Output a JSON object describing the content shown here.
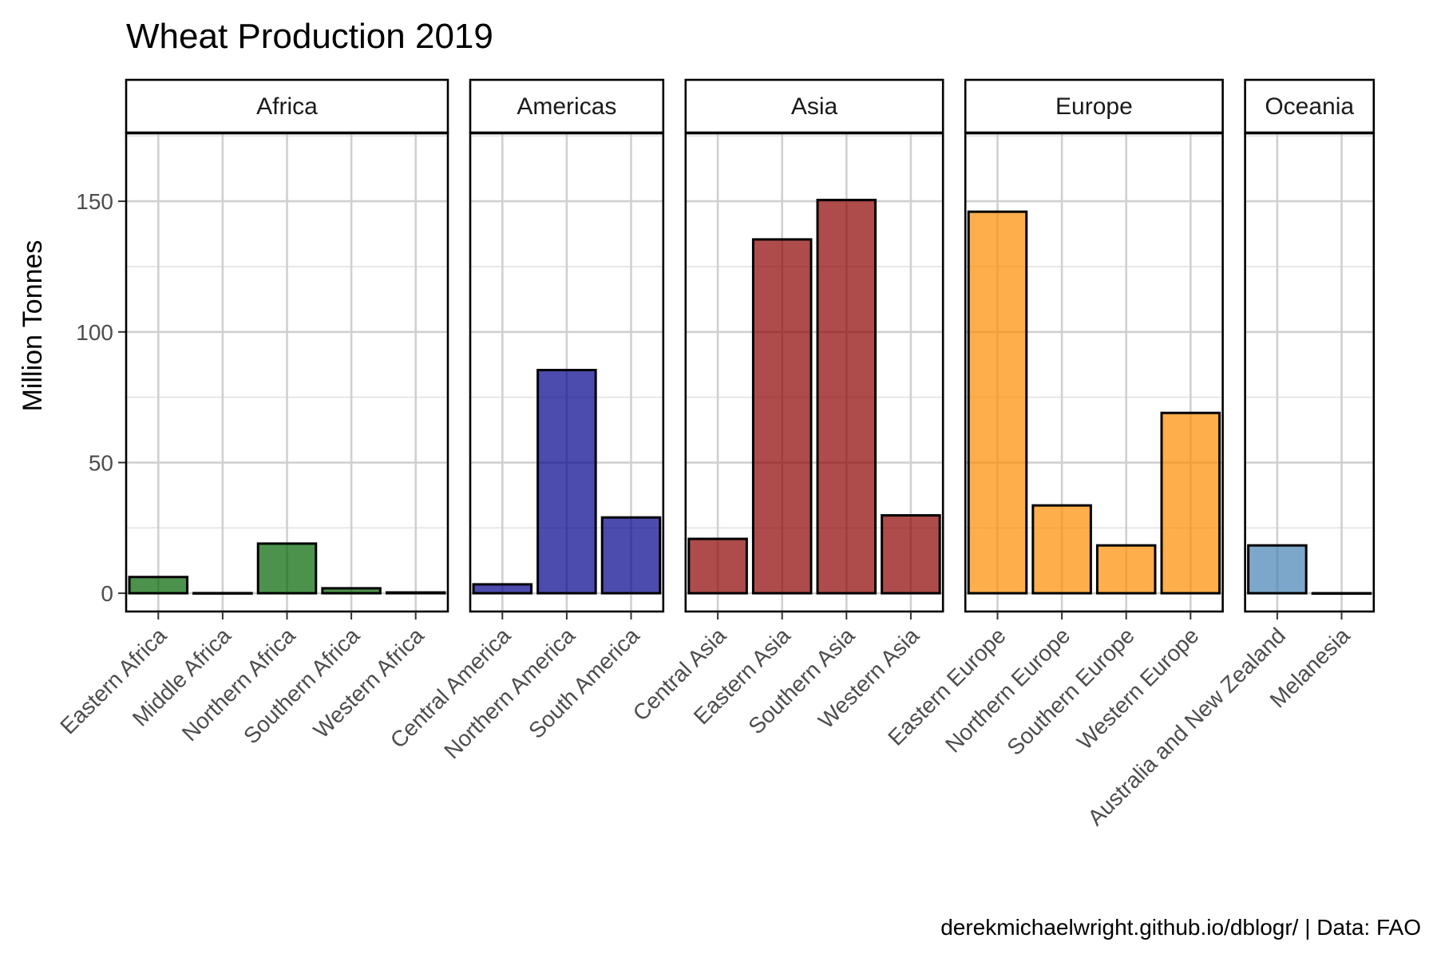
{
  "chart_data": {
    "type": "bar",
    "title": "Wheat Production 2019",
    "ylabel": "Million Tonnes",
    "xlabel": "",
    "caption": "derekmichaelwright.github.io/dblogr/ | Data: FAO",
    "ylim": [
      -7,
      176
    ],
    "yticks": [
      0,
      50,
      100,
      150
    ],
    "grid": true,
    "legend": "none",
    "facets": [
      {
        "name": "Africa",
        "color": "#006400",
        "categories": [
          "Eastern Africa",
          "Middle Africa",
          "Northern Africa",
          "Southern Africa",
          "Western Africa"
        ],
        "values": [
          6.2,
          0.05,
          19.0,
          1.9,
          0.3
        ]
      },
      {
        "name": "Americas",
        "color": "#00008B",
        "categories": [
          "Central America",
          "Northern America",
          "South America"
        ],
        "values": [
          3.4,
          85.4,
          29.0
        ]
      },
      {
        "name": "Asia",
        "color": "#8B0000",
        "categories": [
          "Central Asia",
          "Eastern Asia",
          "Southern Asia",
          "Western Asia"
        ],
        "values": [
          20.8,
          135.4,
          150.5,
          29.8
        ]
      },
      {
        "name": "Europe",
        "color": "#FF8C00",
        "categories": [
          "Eastern Europe",
          "Northern Europe",
          "Southern Europe",
          "Western Europe"
        ],
        "values": [
          146.0,
          33.6,
          18.3,
          69.0
        ]
      },
      {
        "name": "Oceania",
        "color": "#4682B4",
        "categories": [
          "Australia and New Zealand",
          "Melanesia"
        ],
        "values": [
          18.3,
          0.01
        ]
      }
    ]
  }
}
